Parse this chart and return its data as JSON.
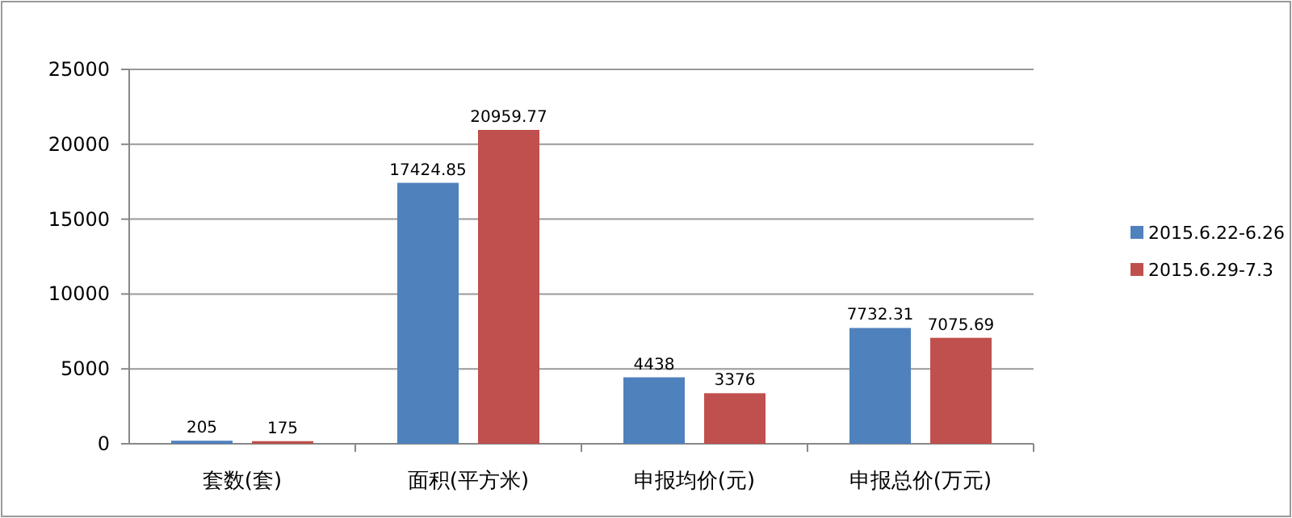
{
  "chart_data": {
    "type": "bar",
    "categories": [
      "套数(套)",
      "面积(平方米)",
      "申报均价(元)",
      "申报总价(万元)"
    ],
    "series": [
      {
        "name": "2015.6.22-6.26",
        "color": "#4f81bd",
        "values": [
          205,
          17424.85,
          4438,
          7732.31
        ]
      },
      {
        "name": "2015.6.29-7.3",
        "color": "#c0504d",
        "values": [
          175,
          20959.77,
          3376,
          7075.69
        ]
      }
    ],
    "ylim": [
      0,
      25000
    ],
    "yticks": [
      0,
      5000,
      10000,
      15000,
      20000,
      25000
    ],
    "grid": "y",
    "legend": "right",
    "data_labels": true
  }
}
